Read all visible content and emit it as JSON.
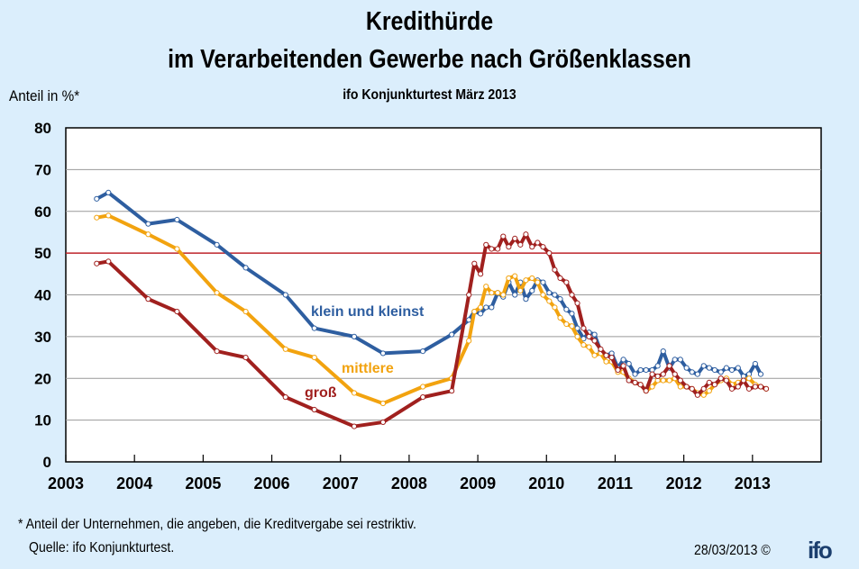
{
  "header": {
    "title_line1": "Kredithürde",
    "title_line2": "im Verarbeitenden  Gewerbe nach Größenklassen",
    "subtitle": "ifo Konjunkturtest März 2013",
    "y_axis_label": "Anteil in %*"
  },
  "footer": {
    "footnote": "* Anteil der Unternehmen,  die angeben, die Kreditvergabe sei restriktiv.",
    "source": "Quelle: ifo Konjunkturtest.",
    "date": "28/03/2013 ©",
    "logo": "ifo"
  },
  "chart_data": {
    "type": "line",
    "title": "Kredithürde im Verarbeitenden Gewerbe nach Größenklassen",
    "subtitle": "ifo Konjunkturtest März 2013",
    "xlabel": "",
    "ylabel": "Anteil in %*",
    "xlim": [
      2003,
      2014
    ],
    "ylim": [
      0,
      80
    ],
    "xticks": [
      "2003",
      "2004",
      "2005",
      "2006",
      "2007",
      "2008",
      "2009",
      "2010",
      "2011",
      "2012",
      "2013"
    ],
    "yticks": [
      "0",
      "10",
      "20",
      "30",
      "40",
      "50",
      "60",
      "70",
      "80"
    ],
    "grid": true,
    "reference_line": {
      "y": 50,
      "color": "#c0262c"
    },
    "series": [
      {
        "name": "klein und kleinst",
        "color": "#2e5ea0",
        "x": [
          2003.45,
          2003.62,
          2004.2,
          2004.62,
          2005.2,
          2005.62,
          2006.2,
          2006.62,
          2007.2,
          2007.62,
          2008.2,
          2008.62,
          2008.87,
          2008.95,
          2009.04,
          2009.12,
          2009.2,
          2009.29,
          2009.37,
          2009.45,
          2009.54,
          2009.62,
          2009.7,
          2009.79,
          2009.87,
          2009.95,
          2010.04,
          2010.12,
          2010.2,
          2010.29,
          2010.37,
          2010.45,
          2010.54,
          2010.62,
          2010.7,
          2010.79,
          2010.87,
          2010.95,
          2011.04,
          2011.12,
          2011.2,
          2011.29,
          2011.37,
          2011.45,
          2011.54,
          2011.62,
          2011.7,
          2011.79,
          2011.87,
          2011.95,
          2012.04,
          2012.12,
          2012.2,
          2012.29,
          2012.37,
          2012.45,
          2012.54,
          2012.62,
          2012.7,
          2012.79,
          2012.87,
          2012.95,
          2013.04,
          2013.12,
          2013.2
        ],
        "values": [
          63,
          64.5,
          57,
          58,
          52,
          46.5,
          40,
          32,
          30,
          26,
          26.5,
          30.5,
          34,
          36,
          35.5,
          37,
          37,
          40.5,
          39.5,
          43,
          40,
          43,
          39,
          41,
          43.5,
          43,
          40.5,
          40,
          39,
          36.5,
          35.5,
          32,
          29.5,
          31,
          30.5,
          26.5,
          25.5,
          26,
          22.5,
          24.5,
          23.5,
          21,
          22,
          22,
          22,
          23,
          26.5,
          22.5,
          24.5,
          24.5,
          22.5,
          21.5,
          21,
          23,
          22.5,
          22,
          21.5,
          22.5,
          22,
          22.5,
          20.5,
          21,
          23.5,
          21,
          null
        ]
      },
      {
        "name": "mittlere",
        "color": "#f2a30f",
        "x": [
          2003.45,
          2003.62,
          2004.2,
          2004.62,
          2005.2,
          2005.62,
          2006.2,
          2006.62,
          2007.2,
          2007.62,
          2008.2,
          2008.62,
          2008.87,
          2008.95,
          2009.04,
          2009.12,
          2009.2,
          2009.29,
          2009.37,
          2009.45,
          2009.54,
          2009.62,
          2009.7,
          2009.79,
          2009.87,
          2009.95,
          2010.04,
          2010.12,
          2010.2,
          2010.29,
          2010.37,
          2010.45,
          2010.54,
          2010.62,
          2010.7,
          2010.79,
          2010.87,
          2010.95,
          2011.04,
          2011.12,
          2011.2,
          2011.29,
          2011.37,
          2011.45,
          2011.54,
          2011.62,
          2011.7,
          2011.79,
          2011.87,
          2011.95,
          2012.04,
          2012.12,
          2012.2,
          2012.29,
          2012.37,
          2012.45,
          2012.54,
          2012.62,
          2012.7,
          2012.79,
          2012.87,
          2012.95,
          2013.04,
          2013.12,
          2013.2
        ],
        "values": [
          58.5,
          59,
          54.5,
          51,
          40.5,
          36,
          27,
          25,
          16.5,
          14,
          18,
          20,
          29,
          36,
          37,
          42,
          40.5,
          40.5,
          40,
          44,
          44.5,
          41,
          43.5,
          44,
          43,
          40,
          38.5,
          37,
          34.5,
          33,
          32.5,
          30,
          28,
          27.5,
          25.5,
          26,
          24,
          24,
          21.5,
          21.5,
          20,
          19,
          18.5,
          17,
          18,
          19.5,
          19.5,
          19.5,
          20,
          18,
          18,
          17.5,
          16.5,
          16,
          17,
          18.5,
          19.5,
          20,
          18.5,
          19,
          19.5,
          20,
          18.5,
          18,
          17.5
        ]
      },
      {
        "name": "groß",
        "color": "#a0201e",
        "x": [
          2003.45,
          2003.62,
          2004.2,
          2004.62,
          2005.2,
          2005.62,
          2006.2,
          2006.62,
          2007.2,
          2007.62,
          2008.2,
          2008.62,
          2008.87,
          2008.95,
          2009.04,
          2009.12,
          2009.2,
          2009.29,
          2009.37,
          2009.45,
          2009.54,
          2009.62,
          2009.7,
          2009.79,
          2009.87,
          2009.95,
          2010.04,
          2010.12,
          2010.2,
          2010.29,
          2010.37,
          2010.45,
          2010.54,
          2010.62,
          2010.7,
          2010.79,
          2010.87,
          2010.95,
          2011.04,
          2011.12,
          2011.2,
          2011.29,
          2011.37,
          2011.45,
          2011.54,
          2011.62,
          2011.7,
          2011.79,
          2011.87,
          2011.95,
          2012.04,
          2012.12,
          2012.2,
          2012.29,
          2012.37,
          2012.45,
          2012.54,
          2012.62,
          2012.7,
          2012.79,
          2012.87,
          2012.95,
          2013.04,
          2013.12,
          2013.2
        ],
        "values": [
          47.5,
          48,
          39,
          36,
          26.5,
          25,
          15.5,
          12.5,
          8.5,
          9.5,
          15.5,
          17,
          40,
          47.5,
          45,
          52,
          51,
          51,
          54,
          51.5,
          53.5,
          52,
          54.5,
          51.5,
          52.5,
          51.5,
          50,
          46,
          44,
          43,
          40,
          38,
          32,
          30,
          29,
          27,
          25.5,
          25,
          22,
          23,
          19.5,
          19,
          18.5,
          17,
          21,
          20.5,
          21,
          23,
          21,
          19.5,
          18,
          17.5,
          16,
          17.5,
          19,
          18.5,
          20,
          19.5,
          17.5,
          18,
          19.5,
          17.5,
          18,
          18,
          17.5
        ]
      }
    ],
    "annotations": [
      {
        "text": "klein und kleinst",
        "series": "klein und kleinst"
      },
      {
        "text": "mittlere",
        "series": "mittlere"
      },
      {
        "text": "groß",
        "series": "groß"
      }
    ]
  }
}
